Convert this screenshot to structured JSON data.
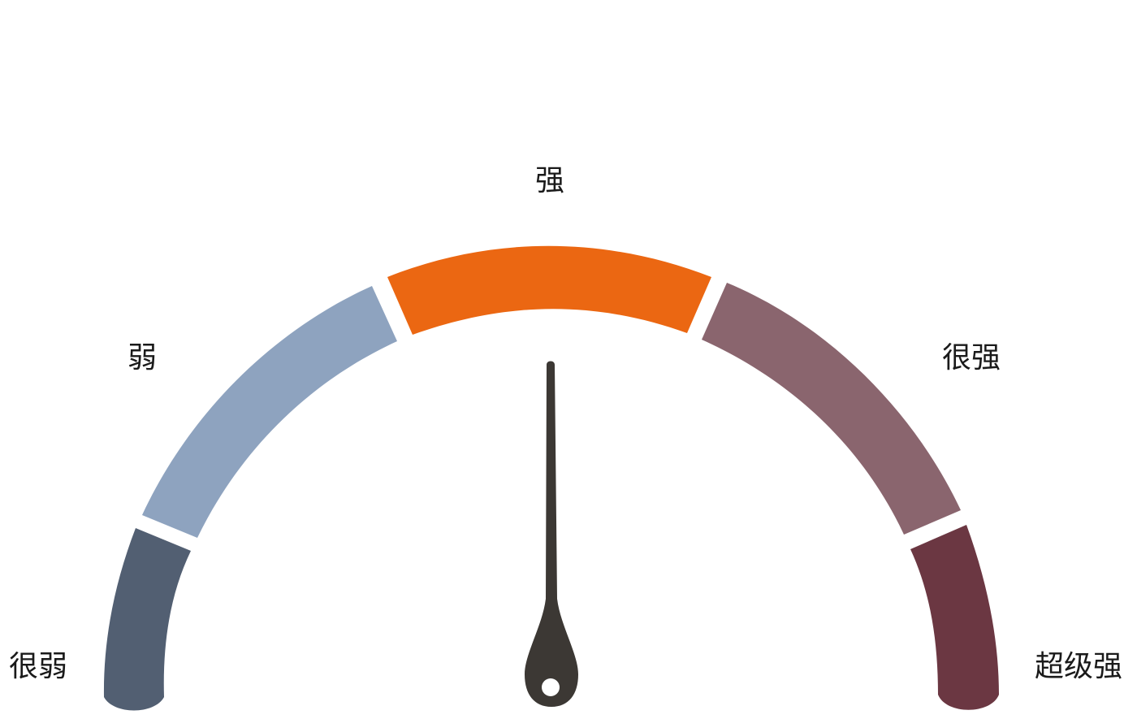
{
  "gauge": {
    "segments": [
      {
        "label": "很弱",
        "color": "#525f72"
      },
      {
        "label": "弱",
        "color": "#8ea3bf"
      },
      {
        "label": "强",
        "color": "#eb6712"
      },
      {
        "label": "很强",
        "color": "#8a656e"
      },
      {
        "label": "超级强",
        "color": "#6b3742"
      }
    ],
    "needle": {
      "color": "#3c3834",
      "pointing_to": "强"
    }
  }
}
